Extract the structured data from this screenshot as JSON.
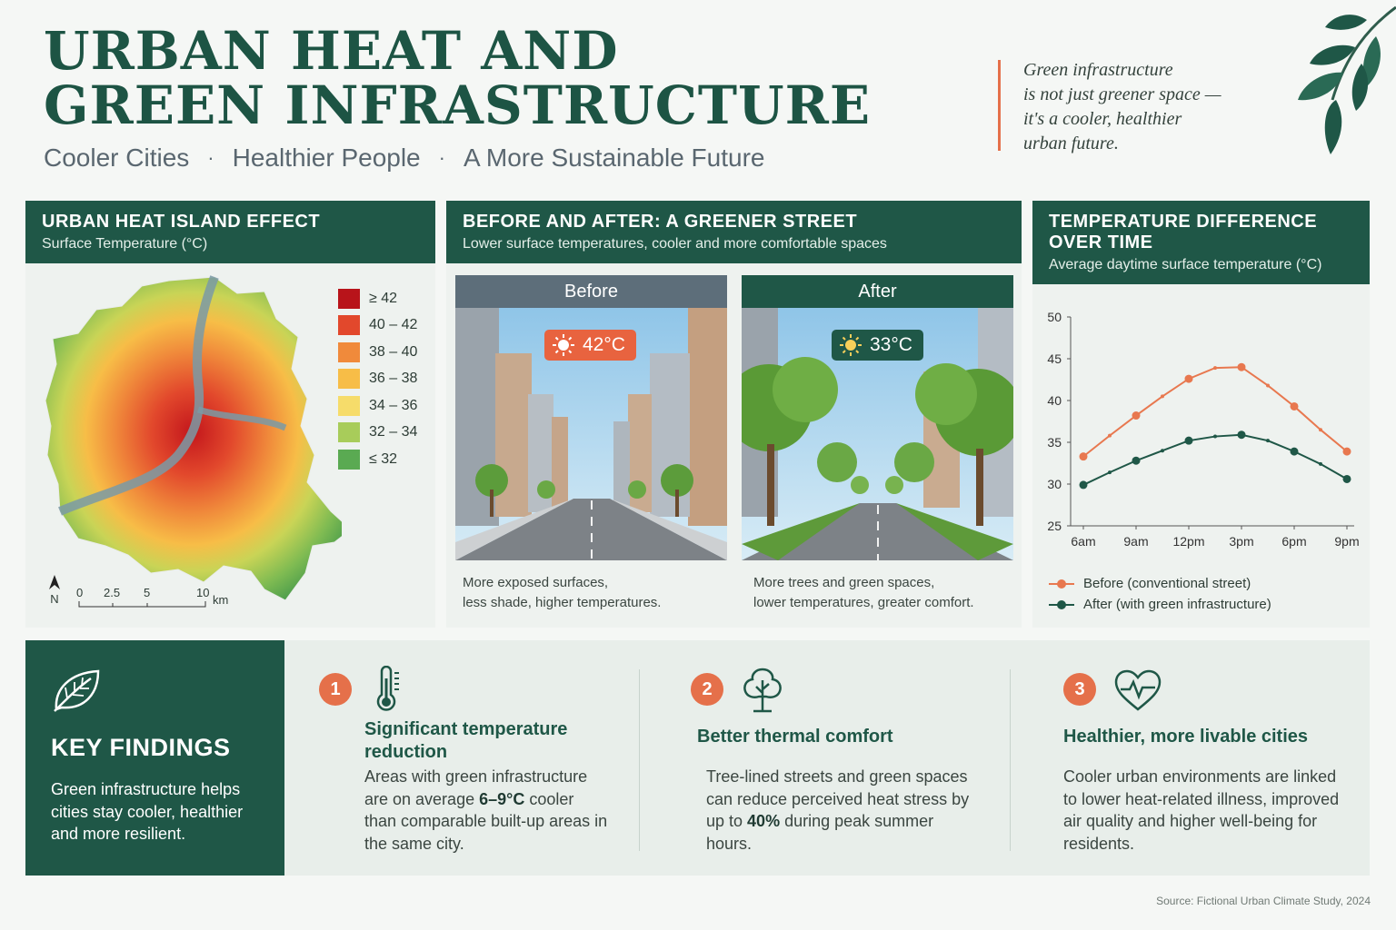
{
  "header": {
    "title_line1": "URBAN HEAT AND",
    "title_line2": "GREEN INFRASTRUCTURE",
    "subtitle": [
      "Cooler Cities",
      "Healthier People",
      "A More Sustainable Future"
    ],
    "quote": "Green infrastructure\nis not just greener space —\nit's a cooler, healthier\nurban future."
  },
  "heat_map": {
    "title": "URBAN HEAT ISLAND EFFECT",
    "subtitle": "Surface Temperature (°C)",
    "legend": [
      {
        "label": "≥ 42",
        "color": "#b8141a"
      },
      {
        "label": "40 – 42",
        "color": "#e2482c"
      },
      {
        "label": "38 – 40",
        "color": "#f08a3b"
      },
      {
        "label": "36 – 38",
        "color": "#f7bd47"
      },
      {
        "label": "34 – 36",
        "color": "#f6dc6a"
      },
      {
        "label": "32 – 34",
        "color": "#a8cc5a"
      },
      {
        "label": "≤ 32",
        "color": "#5aaa52"
      }
    ],
    "north": "N",
    "scale_ticks": [
      "0",
      "2.5",
      "5",
      "10"
    ],
    "scale_unit": "km"
  },
  "street": {
    "title": "BEFORE AND AFTER: A GREENER STREET",
    "subtitle": "Lower surface temperatures, cooler and more comfortable spaces",
    "before": {
      "label": "Before",
      "temp": "42°C",
      "caption": "More exposed surfaces,\nless shade, higher temperatures."
    },
    "after": {
      "label": "After",
      "temp": "33°C",
      "caption": "More trees and green spaces,\nlower temperatures, greater comfort."
    }
  },
  "temp_chart": {
    "title_line1": "TEMPERATURE DIFFERENCE",
    "title_line2": "OVER TIME",
    "subtitle": "Average daytime surface temperature (°C)"
  },
  "chart_data": {
    "type": "line",
    "categories": [
      "6am",
      "9am",
      "12pm",
      "3pm",
      "6pm",
      "9pm"
    ],
    "x": [
      6,
      7.5,
      9,
      10.5,
      12,
      13.5,
      15,
      16.5,
      18,
      19.5,
      21
    ],
    "series": [
      {
        "name": "Before (conventional street)",
        "color": "#e8784f",
        "values": [
          33.3,
          35.8,
          38.2,
          40.5,
          42.6,
          43.9,
          44.0,
          41.8,
          39.3,
          36.5,
          33.9
        ]
      },
      {
        "name": "After (with green infrastructure)",
        "color": "#1f5747",
        "values": [
          29.9,
          31.4,
          32.8,
          34.0,
          35.2,
          35.7,
          35.9,
          35.2,
          33.9,
          32.4,
          30.6
        ]
      }
    ],
    "yticks": [
      25,
      30,
      35,
      40,
      45,
      50
    ],
    "ylim": [
      25,
      50
    ],
    "xlim": [
      6,
      21
    ],
    "grid": false,
    "legend_position": "bottom"
  },
  "findings": {
    "title": "KEY FINDINGS",
    "text": "Green infrastructure helps cities stay cooler, healthier and more resilient.",
    "items": [
      {
        "num": "1",
        "icon": "thermometer-icon",
        "title": "Significant temperature reduction",
        "pre": "Areas with green infrastructure are on average ",
        "bold": "6–9°C",
        "post": " cooler than comparable built-up areas in the same city."
      },
      {
        "num": "2",
        "icon": "tree-icon",
        "title": "Better thermal comfort",
        "pre": "Tree-lined streets and green spaces can reduce perceived heat stress by up to ",
        "bold": "40%",
        "post": " during peak summer hours."
      },
      {
        "num": "3",
        "icon": "heartbeat-icon",
        "title": "Healthier, more livable cities",
        "pre": "Cooler urban environments are linked to lower heat-related illness, improved air quality and higher well-being for residents.",
        "bold": "",
        "post": ""
      }
    ]
  },
  "source": "Source: Fictional Urban Climate Study, 2024"
}
